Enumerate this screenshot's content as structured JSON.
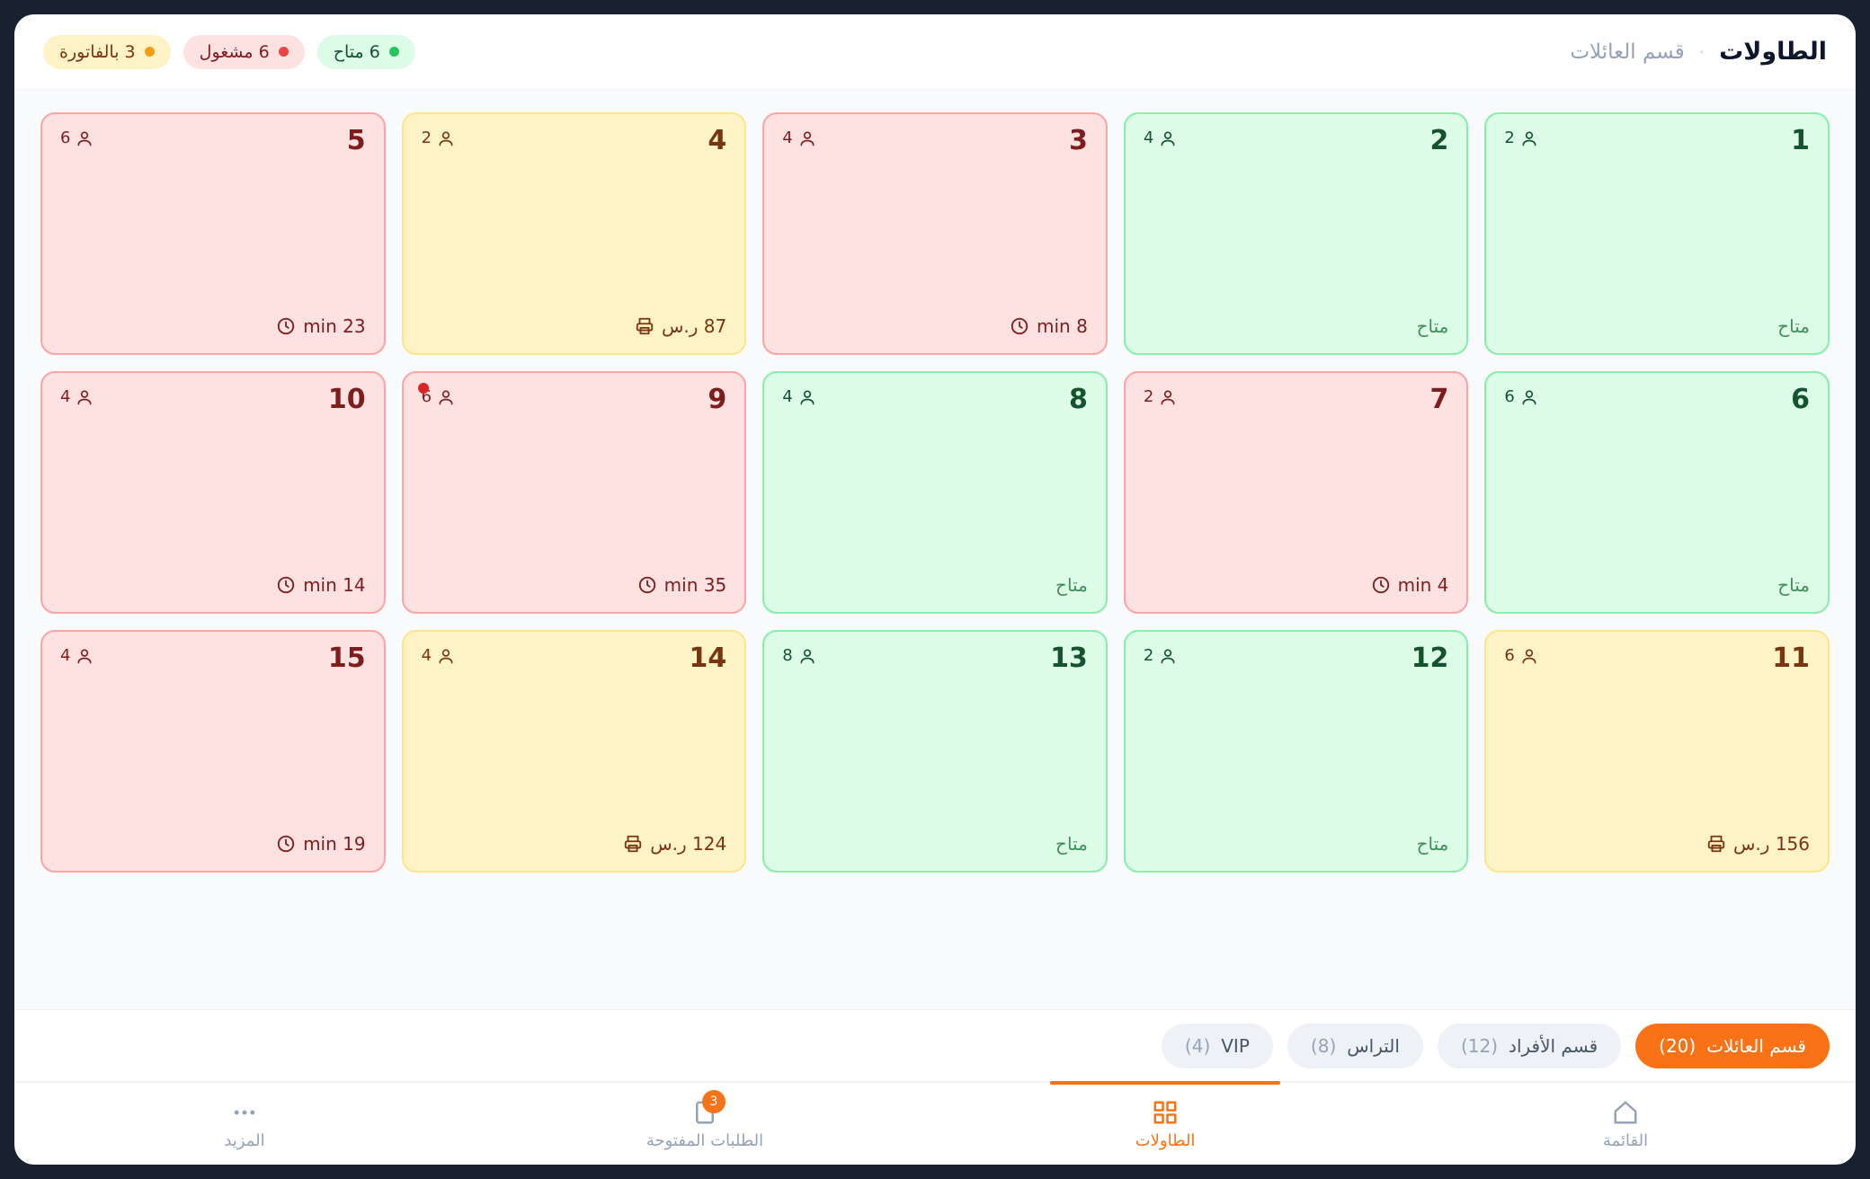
{
  "header": {
    "title": "الطاولات",
    "section": "قسم العائلات"
  },
  "status_summary": [
    {
      "text": "6 متاح",
      "color": "#22c55e"
    },
    {
      "text": "6 مشغول",
      "color": "#ef4444"
    },
    {
      "text": "3 بالفاتورة",
      "color": "#f59e0b"
    }
  ],
  "tables": [
    {
      "number": 1,
      "seats": 2,
      "footer": "متاح",
      "color": "#dcfce7"
    },
    {
      "number": 2,
      "seats": 4,
      "footer": "متاح",
      "color": "#dcfce7"
    },
    {
      "number": 3,
      "seats": 4,
      "footer": "8 min",
      "color": "#fee2e2"
    },
    {
      "number": 4,
      "seats": 2,
      "footer": "87 ر.س",
      "color": "#fef3c7"
    },
    {
      "number": 5,
      "seats": 6,
      "footer": "23 min",
      "color": "#fee2e2"
    },
    {
      "number": 6,
      "seats": 6,
      "footer": "متاح",
      "color": "#dcfce7"
    },
    {
      "number": 7,
      "seats": 2,
      "footer": "4 min",
      "color": "#fee2e2"
    },
    {
      "number": 8,
      "seats": 4,
      "footer": "متاح",
      "color": "#dcfce7"
    },
    {
      "number": 9,
      "seats": 6,
      "footer": "35 min",
      "color": "#fee2e2",
      "notification_dot": true
    },
    {
      "number": 10,
      "seats": 4,
      "footer": "14 min",
      "color": "#fee2e2"
    },
    {
      "number": 11,
      "seats": 6,
      "footer": "156 ر.س",
      "color": "#fef3c7"
    },
    {
      "number": 12,
      "seats": 2,
      "footer": "متاح",
      "color": "#dcfce7"
    },
    {
      "number": 13,
      "seats": 8,
      "footer": "متاح",
      "color": "#dcfce7"
    },
    {
      "number": 14,
      "seats": 4,
      "footer": "124 ر.س",
      "color": "#fef3c7"
    },
    {
      "number": 15,
      "seats": 4,
      "footer": "19 min",
      "color": "#fee2e2"
    }
  ],
  "section_tabs": [
    {
      "label": "قسم العائلات",
      "count": "(20)",
      "active": true
    },
    {
      "label": "قسم الأفراد",
      "count": "(12)"
    },
    {
      "label": "التراس",
      "count": "(8)"
    },
    {
      "label": "VIP",
      "count": "(4)"
    }
  ],
  "nav": [
    {
      "label": "القائمة"
    },
    {
      "label": "الطاولات",
      "active": true
    },
    {
      "label": "الطلبات المفتوحة",
      "badge": 3
    },
    {
      "label": "المزيد"
    }
  ]
}
